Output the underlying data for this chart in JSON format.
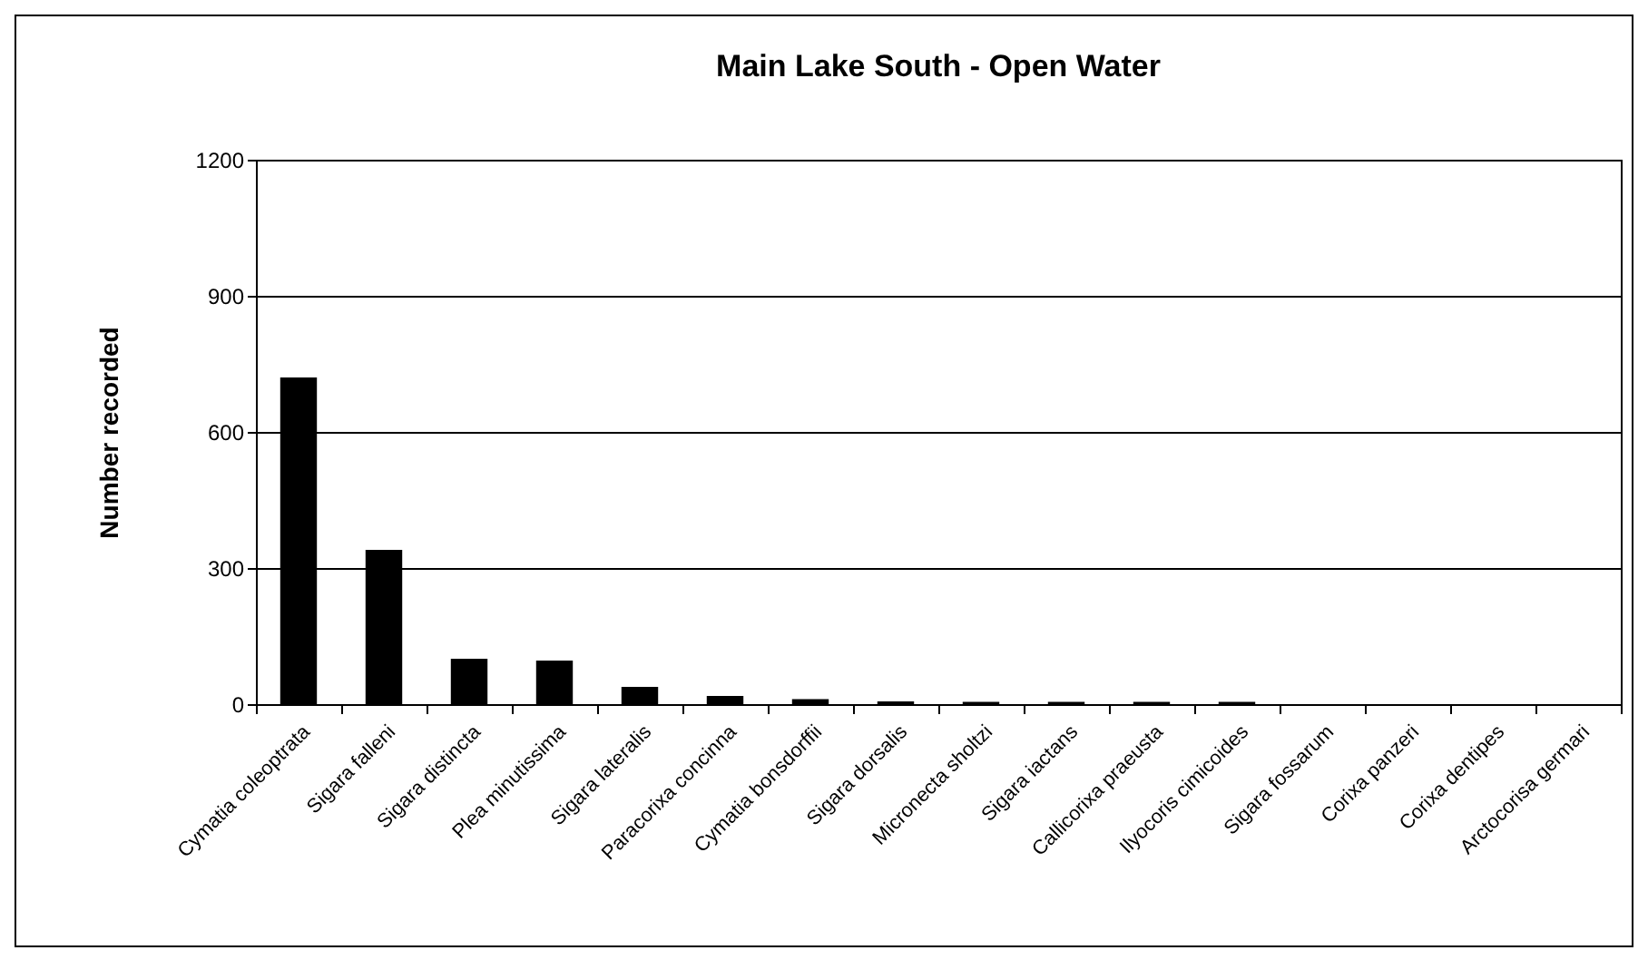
{
  "chart_data": {
    "type": "bar",
    "title": "Main Lake South - Open Water",
    "ylabel": "Number recorded",
    "categories": [
      "Cymatia coleoptrata",
      "Sigara falleni",
      "Sigara distincta",
      "Plea minutissima",
      "Sigara lateralis",
      "Paracorixa concinna",
      "Cymatia bonsdorffii",
      "Sigara dorsalis",
      "Micronecta sholtzi",
      "Sigara iactans",
      "Callicorixa praeusta",
      "Ilyocoris cimicoides",
      "Sigara fossarum",
      "Corixa panzeri",
      "Corixa dentipes",
      "Arctocorisa germari"
    ],
    "values": [
      720,
      340,
      100,
      96,
      38,
      18,
      11,
      6,
      5,
      5,
      5,
      5,
      0,
      0,
      0,
      0
    ],
    "color": "#000000",
    "ylim": [
      0,
      1200
    ],
    "yticks": [
      0,
      300,
      600,
      900,
      1200
    ],
    "grid": "y"
  }
}
